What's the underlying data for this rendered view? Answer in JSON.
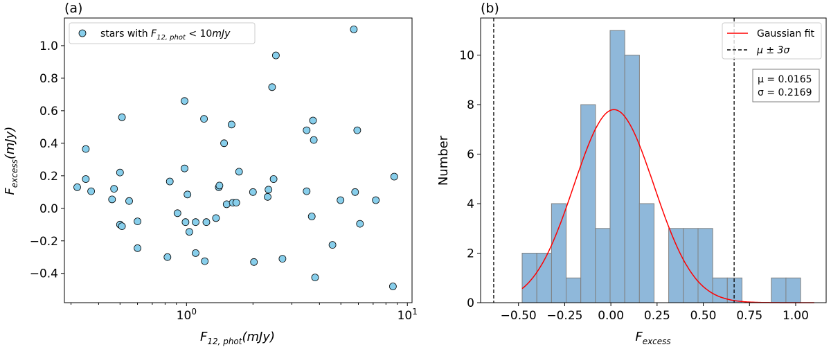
{
  "chart_data": [
    {
      "type": "scatter",
      "panel_label": "(a)",
      "xlabel": "F_{12,phot}(mJy)",
      "ylabel": "F_{excess}(mJy)",
      "xscale": "log",
      "xlim": [
        0.28,
        10.5
      ],
      "ylim": [
        -0.58,
        1.17
      ],
      "xticks": [
        {
          "value": 1,
          "label": "10^0"
        },
        {
          "value": 10,
          "label": "10^1"
        }
      ],
      "yticks": [
        -0.4,
        -0.2,
        0.0,
        0.2,
        0.4,
        0.6,
        0.8,
        1.0
      ],
      "ytick_labels": [
        "−0.4",
        "−0.2",
        "0.0",
        "0.2",
        "0.4",
        "0.6",
        "0.8",
        "1.0"
      ],
      "grid": false,
      "legend": {
        "placement": "top-left",
        "entries": [
          "stars with F_{12,phot} < 10mJy"
        ]
      },
      "marker_color": "#87ceeb",
      "series": [
        {
          "name": "stars with F_{12,phot} < 10mJy",
          "points": [
            [
              0.32,
              0.13
            ],
            [
              0.35,
              0.18
            ],
            [
              0.35,
              0.365
            ],
            [
              0.37,
              0.105
            ],
            [
              0.46,
              0.055
            ],
            [
              0.47,
              0.12
            ],
            [
              0.5,
              0.22
            ],
            [
              0.5,
              -0.1
            ],
            [
              0.51,
              -0.11
            ],
            [
              0.51,
              0.56
            ],
            [
              0.55,
              0.045
            ],
            [
              0.6,
              -0.08
            ],
            [
              0.6,
              -0.245
            ],
            [
              0.82,
              -0.3
            ],
            [
              0.84,
              0.165
            ],
            [
              0.91,
              -0.03
            ],
            [
              0.98,
              0.66
            ],
            [
              0.98,
              0.245
            ],
            [
              0.99,
              -0.085
            ],
            [
              1.01,
              0.085
            ],
            [
              1.03,
              -0.145
            ],
            [
              1.1,
              -0.085
            ],
            [
              1.1,
              -0.275
            ],
            [
              1.2,
              0.55
            ],
            [
              1.21,
              -0.325
            ],
            [
              1.23,
              -0.085
            ],
            [
              1.36,
              -0.06
            ],
            [
              1.4,
              0.13
            ],
            [
              1.41,
              0.14
            ],
            [
              1.48,
              0.4
            ],
            [
              1.52,
              0.025
            ],
            [
              1.6,
              0.515
            ],
            [
              1.62,
              0.035
            ],
            [
              1.68,
              0.035
            ],
            [
              1.73,
              0.225
            ],
            [
              2.0,
              0.1
            ],
            [
              2.02,
              -0.33
            ],
            [
              2.33,
              0.07
            ],
            [
              2.35,
              0.115
            ],
            [
              2.44,
              0.745
            ],
            [
              2.48,
              0.18
            ],
            [
              2.54,
              0.94
            ],
            [
              2.72,
              -0.31
            ],
            [
              3.5,
              0.48
            ],
            [
              3.5,
              0.105
            ],
            [
              3.69,
              -0.05
            ],
            [
              3.74,
              0.54
            ],
            [
              3.77,
              0.42
            ],
            [
              3.82,
              -0.425
            ],
            [
              4.58,
              -0.225
            ],
            [
              4.98,
              0.05
            ],
            [
              5.72,
              1.1
            ],
            [
              5.8,
              0.1
            ],
            [
              5.93,
              0.48
            ],
            [
              6.1,
              -0.095
            ],
            [
              7.2,
              0.05
            ],
            [
              8.6,
              -0.48
            ],
            [
              8.72,
              0.195
            ]
          ]
        }
      ]
    },
    {
      "type": "bar",
      "subtype": "histogram",
      "panel_label": "(b)",
      "xlabel": "F_{excess}",
      "ylabel": "Number",
      "xlim": [
        -0.705,
        1.165
      ],
      "ylim": [
        0,
        11.5
      ],
      "xticks": [
        -0.5,
        -0.25,
        0.0,
        0.25,
        0.5,
        0.75,
        1.0
      ],
      "xtick_labels": [
        "−0.50",
        "−0.25",
        "0.00",
        "0.25",
        "0.50",
        "0.75",
        "1.00"
      ],
      "yticks": [
        0,
        2,
        4,
        6,
        8,
        10
      ],
      "ytick_labels": [
        "0",
        "2",
        "4",
        "6",
        "8",
        "10"
      ],
      "grid": false,
      "bar_color": "#8fb8da",
      "bar_edge_color": "#7f7f7f",
      "bin_start": -0.48,
      "bin_width": 0.0793,
      "counts": [
        2,
        2,
        4,
        1,
        8,
        3,
        11,
        10,
        4,
        0,
        3,
        3,
        3,
        1,
        1,
        0,
        0,
        1,
        1
      ],
      "gaussian_fit": {
        "name": "Gaussian fit",
        "color": "#ff0000",
        "mu": 0.0165,
        "sigma": 0.2169,
        "amplitude": 7.8,
        "x_range": [
          -0.48,
          1.1
        ]
      },
      "mu_3sigma_lines": {
        "name": "μ ± 3σ",
        "x": [
          -0.634,
          0.667
        ]
      },
      "legend": {
        "placement": "top-right",
        "entries": [
          "Gaussian fit",
          "μ ± 3σ"
        ]
      },
      "stats_box": {
        "mu_text": "μ = 0.0165",
        "sigma_text": "σ = 0.2169"
      }
    }
  ]
}
